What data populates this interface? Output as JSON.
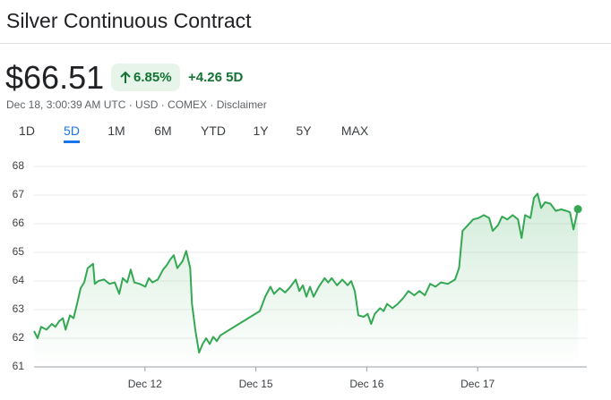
{
  "header": {
    "title": "Silver Continuous Contract",
    "price": "$66.51",
    "change_percent": "6.85%",
    "change": "+4.26 5D",
    "subtitle": "Dec 18, 3:00:39 AM UTC · USD · COMEX · Disclaimer"
  },
  "tabs": {
    "items": [
      "1D",
      "5D",
      "1M",
      "6M",
      "YTD",
      "1Y",
      "5Y",
      "MAX"
    ],
    "selected": 1
  },
  "chart_data": {
    "type": "line",
    "color": "#34a853",
    "grid": true,
    "x": [
      0,
      0.8,
      1.6,
      2.8,
      4.0,
      4.8,
      5.7,
      6.5,
      7.1,
      8.1,
      8.9,
      9.7,
      10.5,
      11.3,
      12.1,
      13.3,
      13.7,
      14.5,
      15.8,
      17.0,
      18.2,
      19.2,
      20.0,
      21.0,
      21.8,
      22.6,
      23.8,
      25.1,
      25.9,
      26.7,
      27.9,
      29.1,
      29.9,
      30.7,
      31.5,
      32.3,
      33.5,
      34.3,
      35.2,
      35.6,
      36.4,
      37.2,
      38.0,
      38.8,
      39.6,
      40.4,
      41.2,
      42.0,
      50.9,
      52.1,
      53.3,
      54.1,
      55.4,
      56.6,
      57.8,
      59.0,
      59.8,
      60.6,
      61.4,
      62.2,
      63.0,
      64.2,
      65.5,
      66.3,
      67.1,
      68.3,
      69.5,
      70.7,
      71.5,
      72.3,
      73.1,
      74.3,
      75.2,
      76.0,
      76.8,
      78.0,
      78.8,
      79.6,
      80.8,
      82.0,
      83.2,
      84.4,
      85.7,
      86.9,
      88.1,
      89.3,
      90.5,
      91.7,
      93.3,
      94.9,
      95.8,
      96.6,
      97.8,
      99.0,
      100.2,
      101.4,
      102.6,
      103.4,
      104.6,
      105.5,
      106.7,
      107.9,
      109.1,
      109.9,
      110.7,
      111.9,
      112.7,
      113.5,
      114.3,
      115.2,
      116.4,
      117.6,
      118.8,
      120.0,
      120.8,
      121.6,
      122.6
    ],
    "values": [
      62.25,
      62.0,
      62.4,
      62.3,
      62.5,
      62.4,
      62.6,
      62.7,
      62.3,
      62.8,
      62.7,
      63.2,
      63.75,
      63.95,
      64.45,
      64.6,
      63.9,
      64.0,
      64.05,
      63.9,
      63.95,
      63.55,
      64.1,
      63.95,
      64.4,
      63.95,
      63.9,
      63.8,
      64.1,
      63.95,
      64.05,
      64.4,
      64.55,
      64.75,
      64.9,
      64.45,
      64.7,
      65.05,
      64.45,
      63.2,
      62.25,
      61.5,
      61.8,
      62.0,
      61.8,
      62.05,
      61.9,
      62.1,
      62.95,
      63.45,
      63.8,
      63.55,
      63.75,
      63.6,
      63.8,
      64.05,
      63.65,
      63.85,
      63.45,
      63.8,
      63.45,
      63.8,
      64.1,
      63.95,
      64.1,
      63.85,
      64.05,
      63.85,
      64.0,
      63.65,
      62.8,
      62.75,
      62.85,
      62.5,
      62.85,
      63.05,
      62.95,
      63.2,
      63.05,
      63.2,
      63.4,
      63.65,
      63.5,
      63.65,
      63.5,
      63.9,
      63.8,
      63.95,
      63.9,
      64.05,
      64.45,
      65.75,
      65.95,
      66.15,
      66.2,
      66.3,
      66.2,
      65.75,
      65.95,
      66.25,
      66.15,
      66.3,
      66.15,
      65.5,
      66.3,
      66.2,
      66.9,
      67.05,
      66.55,
      66.75,
      66.7,
      66.45,
      66.5,
      66.45,
      66.4,
      65.8,
      66.51
    ],
    "xlim": [
      0,
      124
    ],
    "xticks": [
      {
        "value": 25,
        "label": "Dec 12"
      },
      {
        "value": 50,
        "label": "Dec 15"
      },
      {
        "value": 75,
        "label": "Dec 16"
      },
      {
        "value": 100,
        "label": "Dec 17"
      }
    ],
    "ylim": [
      61,
      68
    ],
    "yticks": [
      61,
      62,
      63,
      64,
      65,
      66,
      67,
      68
    ]
  }
}
